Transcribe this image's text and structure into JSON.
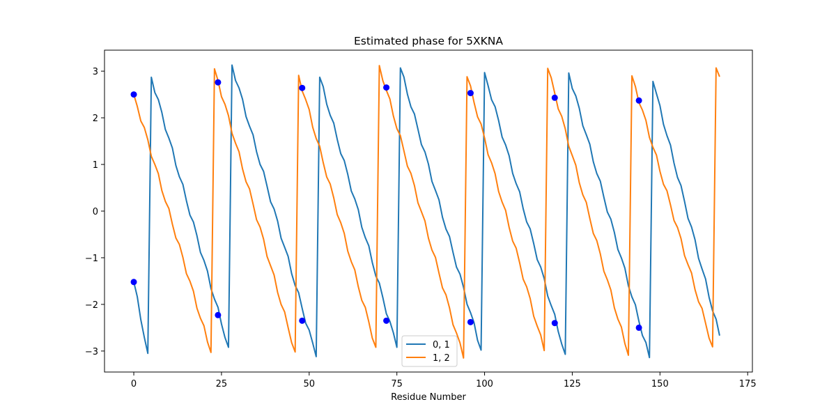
{
  "chart_data": {
    "type": "line",
    "title": "Estimated phase for 5XKNA",
    "xlabel": "Residue Number",
    "ylabel": "",
    "xlim": [
      -8.35,
      176.35
    ],
    "ylim": [
      -3.45,
      3.45
    ],
    "xticks": [
      0,
      25,
      50,
      75,
      100,
      125,
      150,
      175
    ],
    "yticks": [
      3,
      2,
      1,
      0,
      -1,
      -2,
      -3
    ],
    "ytick_labels": [
      "3",
      "2",
      "1",
      "0",
      "−1",
      "−2",
      "−3"
    ],
    "grid": false,
    "legend_position": "lower center",
    "series": [
      {
        "name": "0, 1",
        "color": "#1f77b4",
        "cycle_period": 24,
        "wraps": [
          {
            "x_start": 0,
            "x_end": 4,
            "y_start": -1.52,
            "y_end": -3.05
          },
          {
            "x_start": 5,
            "x_end": 27,
            "y_start": 2.87,
            "y_end": -2.92
          },
          {
            "x_start": 28,
            "x_end": 52,
            "y_start": 3.13,
            "y_end": -3.12
          },
          {
            "x_start": 53,
            "x_end": 75,
            "y_start": 2.87,
            "y_end": -2.92
          },
          {
            "x_start": 76,
            "x_end": 99,
            "y_start": 3.07,
            "y_end": -2.98
          },
          {
            "x_start": 100,
            "x_end": 123,
            "y_start": 2.97,
            "y_end": -3.07
          },
          {
            "x_start": 124,
            "x_end": 147,
            "y_start": 2.96,
            "y_end": -3.14
          },
          {
            "x_start": 148,
            "x_end": 167,
            "y_start": 2.78,
            "y_end": -2.67
          }
        ]
      },
      {
        "name": "1, 2",
        "color": "#ff7f0e",
        "cycle_period": 24,
        "wraps": [
          {
            "x_start": 0,
            "x_end": 22,
            "y_start": 2.5,
            "y_end": -3.03
          },
          {
            "x_start": 23,
            "x_end": 46,
            "y_start": 3.05,
            "y_end": -3.02
          },
          {
            "x_start": 47,
            "x_end": 69,
            "y_start": 2.91,
            "y_end": -2.92
          },
          {
            "x_start": 70,
            "x_end": 94,
            "y_start": 3.12,
            "y_end": -3.15
          },
          {
            "x_start": 95,
            "x_end": 117,
            "y_start": 2.88,
            "y_end": -2.99
          },
          {
            "x_start": 118,
            "x_end": 141,
            "y_start": 3.06,
            "y_end": -3.09
          },
          {
            "x_start": 142,
            "x_end": 165,
            "y_start": 2.9,
            "y_end": -2.91
          },
          {
            "x_start": 166,
            "x_end": 167,
            "y_start": 3.07,
            "y_end": 2.88
          }
        ]
      }
    ],
    "markers": {
      "color": "#0000ff",
      "points": [
        {
          "x": 0,
          "y": 2.5
        },
        {
          "x": 0,
          "y": -1.52
        },
        {
          "x": 24,
          "y": 2.76
        },
        {
          "x": 24,
          "y": -2.23
        },
        {
          "x": 48,
          "y": 2.64
        },
        {
          "x": 48,
          "y": -2.35
        },
        {
          "x": 72,
          "y": 2.65
        },
        {
          "x": 72,
          "y": -2.35
        },
        {
          "x": 96,
          "y": 2.53
        },
        {
          "x": 96,
          "y": -2.38
        },
        {
          "x": 120,
          "y": 2.43
        },
        {
          "x": 120,
          "y": -2.4
        },
        {
          "x": 144,
          "y": 2.37
        },
        {
          "x": 144,
          "y": -2.5
        }
      ]
    }
  }
}
